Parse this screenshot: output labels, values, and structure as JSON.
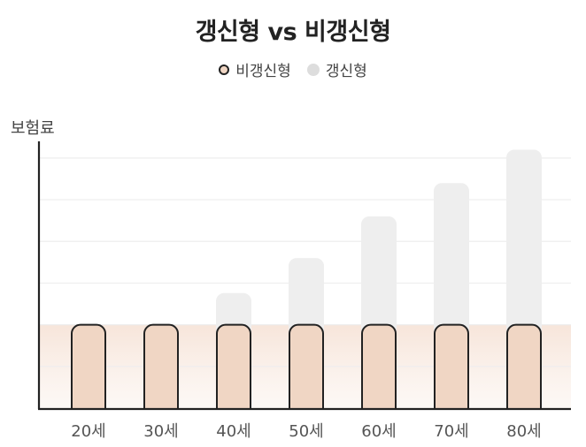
{
  "chart_data": {
    "type": "bar",
    "title": "갱신형 vs 비갱신형",
    "ylabel": "보험료",
    "xlabel": "",
    "categories": [
      "20세",
      "30세",
      "40세",
      "50세",
      "60세",
      "70세",
      "80세"
    ],
    "series": [
      {
        "name": "비갱신형",
        "values": [
          1,
          1,
          1,
          1,
          1,
          1,
          1
        ]
      },
      {
        "name": "갱신형",
        "values": [
          1,
          1,
          1.38,
          1.8,
          2.3,
          2.7,
          3.1
        ]
      }
    ],
    "ylim": [
      0,
      3.2
    ],
    "grid": true,
    "legend_position": "top-center",
    "colors": {
      "비갱신형_fill": "#f0d6c4",
      "비갱신형_stroke": "#222222",
      "갱신형_fill": "#eeeeee",
      "band": "#f7e6dc",
      "gridline": "#eeeeee",
      "axis": "#222222"
    }
  }
}
